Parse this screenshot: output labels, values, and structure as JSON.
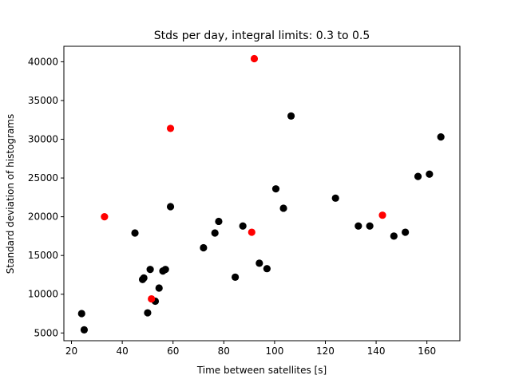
{
  "chart_data": {
    "type": "scatter",
    "title": "Stds per day, integral limits: 0.3 to 0.5",
    "xlabel": "Time between satellites [s]",
    "ylabel": "Standard deviation of histograms",
    "xlim": [
      17,
      173
    ],
    "ylim": [
      4000,
      42000
    ],
    "xticks": [
      20,
      40,
      60,
      80,
      100,
      120,
      140,
      160
    ],
    "yticks": [
      5000,
      10000,
      15000,
      20000,
      25000,
      30000,
      35000,
      40000
    ],
    "grid": false,
    "series": [
      {
        "color": "#000000",
        "points": [
          [
            24,
            7500
          ],
          [
            25,
            5400
          ],
          [
            45,
            17900
          ],
          [
            48,
            11900
          ],
          [
            48.5,
            12100
          ],
          [
            50,
            7600
          ],
          [
            51,
            13200
          ],
          [
            53,
            9100
          ],
          [
            54.5,
            10800
          ],
          [
            56,
            13000
          ],
          [
            57,
            13200
          ],
          [
            59,
            21300
          ],
          [
            72,
            16000
          ],
          [
            76.5,
            17900
          ],
          [
            78,
            19400
          ],
          [
            84.5,
            12200
          ],
          [
            87.5,
            18800
          ],
          [
            94,
            14000
          ],
          [
            97,
            13300
          ],
          [
            100.5,
            23600
          ],
          [
            103.5,
            21100
          ],
          [
            106.5,
            33000
          ],
          [
            124,
            22400
          ],
          [
            133,
            18800
          ],
          [
            137.5,
            18800
          ],
          [
            147,
            17500
          ],
          [
            151.5,
            18000
          ],
          [
            156.5,
            25200
          ],
          [
            161,
            25500
          ],
          [
            165.5,
            30300
          ]
        ]
      },
      {
        "color": "#ff0000",
        "points": [
          [
            33,
            20000
          ],
          [
            51.5,
            9400
          ],
          [
            59,
            31400
          ],
          [
            91,
            18000
          ],
          [
            92,
            40400
          ],
          [
            142.5,
            20200
          ]
        ]
      }
    ]
  }
}
